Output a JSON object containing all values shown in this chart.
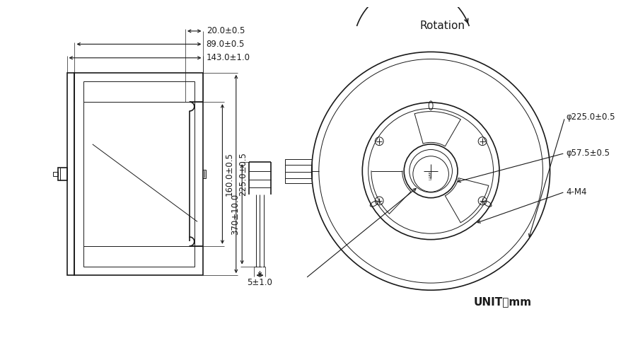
{
  "bg_color": "#ffffff",
  "line_color": "#1a1a1a",
  "lw": 1.2,
  "thin_lw": 0.7,
  "dim_lw": 0.8,
  "annotations": {
    "dim_143": "143.0±1.0",
    "dim_89": "89.0±0.5",
    "dim_20": "20.0±0.5",
    "dim_160": "160.0±0.5",
    "dim_225v": "225.0±0.5",
    "dim_370": "370±10.0",
    "dim_5": "5±1.0",
    "dim_phi225": "φ225.0±0.5",
    "dim_phi57": "φ57.5±0.5",
    "dim_4m4": "4-M4",
    "rotation": "Rotation",
    "unit": "UNIT：mm"
  },
  "font_size": 8.5,
  "font_size_large": 11
}
